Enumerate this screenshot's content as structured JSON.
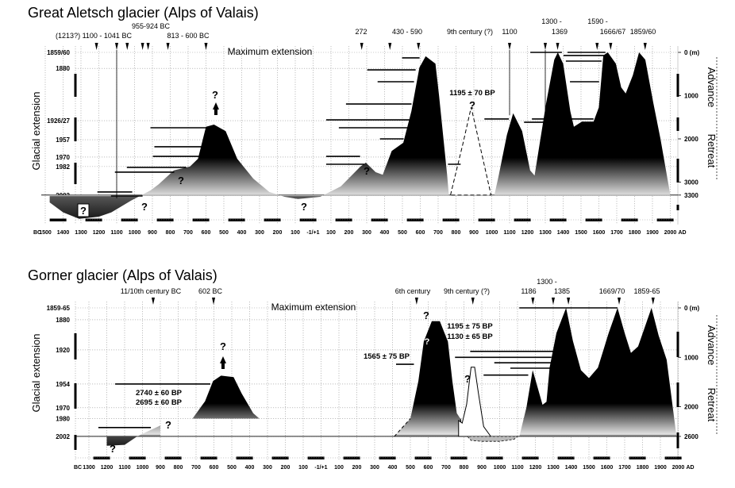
{
  "chart_data": [
    {
      "type": "area",
      "title": "Great Aletsch glacier (Alps of Valais)",
      "ylabel": "Glacial extension",
      "right_axis_labels": [
        "Advance",
        "Retreat"
      ],
      "annotation_max": "Maximum extension",
      "x_tick_labels": [
        "BC",
        "1500",
        "1400",
        "1300",
        "1200",
        "1100",
        "1000",
        "900",
        "800",
        "700",
        "600",
        "500",
        "400",
        "300",
        "200",
        "100",
        "-1/+1",
        "100",
        "200",
        "300",
        "400",
        "500",
        "600",
        "700",
        "800",
        "900",
        "1000",
        "1100",
        "1200",
        "1300",
        "1400",
        "1500",
        "1600",
        "1700",
        "1800",
        "1900",
        "2000",
        "AD"
      ],
      "x_range_years": [
        -1500,
        2000
      ],
      "left_ticks": [
        {
          "label": "1859/60",
          "m": 0
        },
        {
          "label": "1880",
          "m": 370
        },
        {
          "label": "1926/27",
          "m": 1580
        },
        {
          "label": "1957",
          "m": 2020
        },
        {
          "label": "1970",
          "m": 2420
        },
        {
          "label": "1982",
          "m": 2640
        },
        {
          "label": "2002",
          "m": 3300
        }
      ],
      "right_ticks": [
        {
          "label": "0 (m)",
          "m": 0
        },
        {
          "label": "1000",
          "m": 1000
        },
        {
          "label": "2000",
          "m": 2000
        },
        {
          "label": "3000",
          "m": 3000
        },
        {
          "label": "3300",
          "m": 3300
        }
      ],
      "baseline_m": 3300,
      "profile": [
        [
          -1475,
          3470
        ],
        [
          -1400,
          3700
        ],
        [
          -1310,
          3850
        ],
        [
          -1200,
          3800
        ],
        [
          -1130,
          3700
        ],
        [
          -1020,
          3430
        ],
        [
          -910,
          3190
        ],
        [
          -865,
          3050
        ],
        [
          -780,
          2730
        ],
        [
          -690,
          2640
        ],
        [
          -645,
          2460
        ],
        [
          -600,
          1720
        ],
        [
          -555,
          1670
        ],
        [
          -490,
          1820
        ],
        [
          -425,
          2460
        ],
        [
          -335,
          2920
        ],
        [
          -245,
          3230
        ],
        [
          -160,
          3340
        ],
        [
          -85,
          3390
        ],
        [
          40,
          3340
        ],
        [
          155,
          3100
        ],
        [
          265,
          2640
        ],
        [
          295,
          2550
        ],
        [
          350,
          2770
        ],
        [
          390,
          2830
        ],
        [
          440,
          2280
        ],
        [
          505,
          2090
        ],
        [
          550,
          1360
        ],
        [
          595,
          350
        ],
        [
          630,
          90
        ],
        [
          685,
          260
        ],
        [
          705,
          990
        ],
        [
          750,
          2830
        ],
        [
          760,
          3300
        ],
        [
          1015,
          3300
        ],
        [
          1040,
          2830
        ],
        [
          1085,
          1910
        ],
        [
          1120,
          1410
        ],
        [
          1170,
          1820
        ],
        [
          1215,
          2730
        ],
        [
          1240,
          2850
        ],
        [
          1305,
          1170
        ],
        [
          1350,
          170
        ],
        [
          1370,
          0
        ],
        [
          1400,
          260
        ],
        [
          1440,
          1360
        ],
        [
          1460,
          1720
        ],
        [
          1505,
          1600
        ],
        [
          1570,
          1600
        ],
        [
          1600,
          1270
        ],
        [
          1625,
          70
        ],
        [
          1650,
          0
        ],
        [
          1695,
          260
        ],
        [
          1725,
          810
        ],
        [
          1750,
          950
        ],
        [
          1790,
          530
        ],
        [
          1825,
          0
        ],
        [
          1860,
          170
        ],
        [
          1905,
          1170
        ],
        [
          1945,
          2000
        ],
        [
          2000,
          3300
        ]
      ],
      "uncertain_advance": {
        "label": "1195 ± 70 BP",
        "points": [
          [
            770,
            3280
          ],
          [
            840,
            2090
          ],
          [
            885,
            1270
          ],
          [
            930,
            2090
          ],
          [
            995,
            3280
          ]
        ]
      },
      "dated_bars": [
        [
          -1208,
          -1013,
          3229
        ],
        [
          -1132,
          -955,
          3321
        ],
        [
          -1110,
          -778,
          2770
        ],
        [
          -1043,
          -711,
          2660
        ],
        [
          -897,
          -592,
          2404
        ],
        [
          -889,
          -592,
          2183
        ],
        [
          -911,
          -592,
          1743
        ],
        [
          73,
          263,
          2404
        ],
        [
          73,
          286,
          2587
        ],
        [
          144,
          551,
          1743
        ],
        [
          73,
          551,
          1560
        ],
        [
          184,
          551,
          1193
        ],
        [
          498,
          596,
          128
        ],
        [
          303,
          574,
          404
        ],
        [
          361,
          565,
          679
        ],
        [
          374,
          507,
          2000
        ],
        [
          755,
          826,
          2587
        ],
        [
          959,
          1096,
          1541
        ],
        [
          1181,
          1305,
          1615
        ],
        [
          1225,
          1318,
          1541
        ],
        [
          1216,
          1393,
          0
        ],
        [
          1424,
          1637,
          0
        ],
        [
          1402,
          1628,
          73
        ],
        [
          1415,
          1615,
          202
        ],
        [
          1438,
          1601,
          679
        ],
        [
          1446,
          1570,
          1541
        ]
      ],
      "markers_years": [
        -1213,
        -1100,
        -1041,
        -955,
        -924,
        -813,
        -600,
        272,
        430,
        590,
        1100,
        1300,
        1369,
        1590,
        1666,
        1859
      ],
      "marker_labels": [
        "(1213?) 1100 - 1041 BC",
        "955-924 BC",
        "813 - 600 BC",
        "272",
        "430 - 590",
        "9th century (?)",
        "1100",
        "1300 -",
        "1369",
        "1590 -",
        "1666/67",
        "1859/60"
      ]
    },
    {
      "type": "area",
      "title": "Gorner glacier (Alps of Valais)",
      "ylabel": "Glacial extension",
      "right_axis_labels": [
        "Advance",
        "Retreat"
      ],
      "annotation_max": "Maximum extension",
      "x_tick_labels": [
        "BC",
        "1300",
        "1200",
        "1100",
        "1000",
        "900",
        "800",
        "700",
        "600",
        "500",
        "400",
        "300",
        "200",
        "100",
        "-1/+1",
        "100",
        "200",
        "300",
        "400",
        "500",
        "600",
        "700",
        "800",
        "900",
        "1000",
        "1100",
        "1200",
        "1300",
        "1400",
        "1500",
        "1600",
        "1700",
        "1800",
        "1900",
        "2000",
        "AD"
      ],
      "x_range_years": [
        -1300,
        2000
      ],
      "left_ticks": [
        {
          "label": "1859-65",
          "m": 0
        },
        {
          "label": "1880",
          "m": 240
        },
        {
          "label": "1920",
          "m": 850
        },
        {
          "label": "1954",
          "m": 1540
        },
        {
          "label": "1970",
          "m": 2020
        },
        {
          "label": "1980",
          "m": 2240
        },
        {
          "label": "2002",
          "m": 2600
        }
      ],
      "right_ticks": [
        {
          "label": "0 (m)",
          "m": 0
        },
        {
          "label": "1000",
          "m": 1000
        },
        {
          "label": "2000",
          "m": 2000
        },
        {
          "label": "2600",
          "m": 2600
        }
      ],
      "baseline_m": 2600,
      "segments": [
        {
          "base": 2600,
          "points": [
            [
              -1200,
              2790
            ],
            [
              -1100,
              2770
            ],
            [
              -1030,
              2600
            ],
            [
              -960,
              2480
            ],
            [
              -900,
              2380
            ],
            [
              -900,
              2600
            ]
          ]
        },
        {
          "base": 2240,
          "points": [
            [
              -720,
              2240
            ],
            [
              -650,
              1890
            ],
            [
              -605,
              1480
            ],
            [
              -560,
              1370
            ],
            [
              -490,
              1400
            ],
            [
              -445,
              1730
            ],
            [
              -380,
              2130
            ],
            [
              -345,
              2240
            ]
          ]
        },
        {
          "base": 2600,
          "points": [
            [
              410,
              2600
            ],
            [
              500,
              2240
            ],
            [
              545,
              1480
            ],
            [
              575,
              680
            ],
            [
              620,
              270
            ],
            [
              665,
              270
            ],
            [
              710,
              680
            ],
            [
              735,
              1480
            ],
            [
              760,
              2130
            ],
            [
              780,
              2240
            ],
            [
              800,
              2600
            ]
          ]
        },
        {
          "base": 2600,
          "points": [
            [
              1110,
              2600
            ],
            [
              1150,
              2010
            ],
            [
              1185,
              1260
            ],
            [
              1210,
              1580
            ],
            [
              1240,
              1960
            ],
            [
              1262,
              1900
            ],
            [
              1280,
              1200
            ],
            [
              1318,
              510
            ],
            [
              1372,
              0
            ],
            [
              1410,
              670
            ],
            [
              1455,
              1260
            ],
            [
              1500,
              1420
            ],
            [
              1550,
              1210
            ],
            [
              1610,
              510
            ],
            [
              1660,
              0
            ],
            [
              1700,
              510
            ],
            [
              1735,
              910
            ],
            [
              1775,
              780
            ],
            [
              1850,
              0
            ],
            [
              1890,
              560
            ],
            [
              1935,
              1050
            ],
            [
              1990,
              2600
            ]
          ]
        }
      ],
      "uncertain_advance": {
        "points": [
          [
            770,
            2280
          ],
          [
            790,
            2330
          ],
          [
            815,
            1950
          ],
          [
            840,
            1200
          ],
          [
            860,
            1200
          ],
          [
            880,
            1700
          ],
          [
            910,
            2400
          ],
          [
            950,
            2600
          ]
        ]
      },
      "uncertain_retreat": {
        "points": [
          [
            820,
            2600
          ],
          [
            840,
            2680
          ],
          [
            900,
            2700
          ],
          [
            1000,
            2700
          ],
          [
            1080,
            2660
          ],
          [
            1100,
            2600
          ]
        ]
      },
      "dated_bars": [
        [
          -1153,
          -620,
          1540
        ],
        [
          -1247,
          -953,
          2420
        ],
        [
          1110,
          1660,
          0
        ],
        [
          835,
          1300,
          880
        ],
        [
          750,
          1290,
          1000
        ],
        [
          970,
          1290,
          1110
        ],
        [
          1060,
          1290,
          1220
        ],
        [
          910,
          1160,
          1360
        ],
        [
          420,
          520,
          1140
        ]
      ],
      "markers_years": [
        -940,
        -602,
        535,
        850,
        1186,
        1300,
        1385,
        1669,
        1859
      ],
      "marker_labels": [
        "11/10th century BC",
        "602 BC",
        "6th century",
        "9th century (?)",
        "1186",
        "1300 -",
        "1385",
        "1669/70",
        "1859-65"
      ],
      "annotations": [
        "2740 ± 60 BP",
        "2695 ± 60 BP",
        "1195 ± 75 BP",
        "1130 ± 65 BP",
        "1565 ± 75 BP"
      ]
    }
  ],
  "question_mark": "?",
  "colors": {
    "ice": "#000000",
    "fade": "#e4e4e4",
    "grid": "#999999"
  }
}
